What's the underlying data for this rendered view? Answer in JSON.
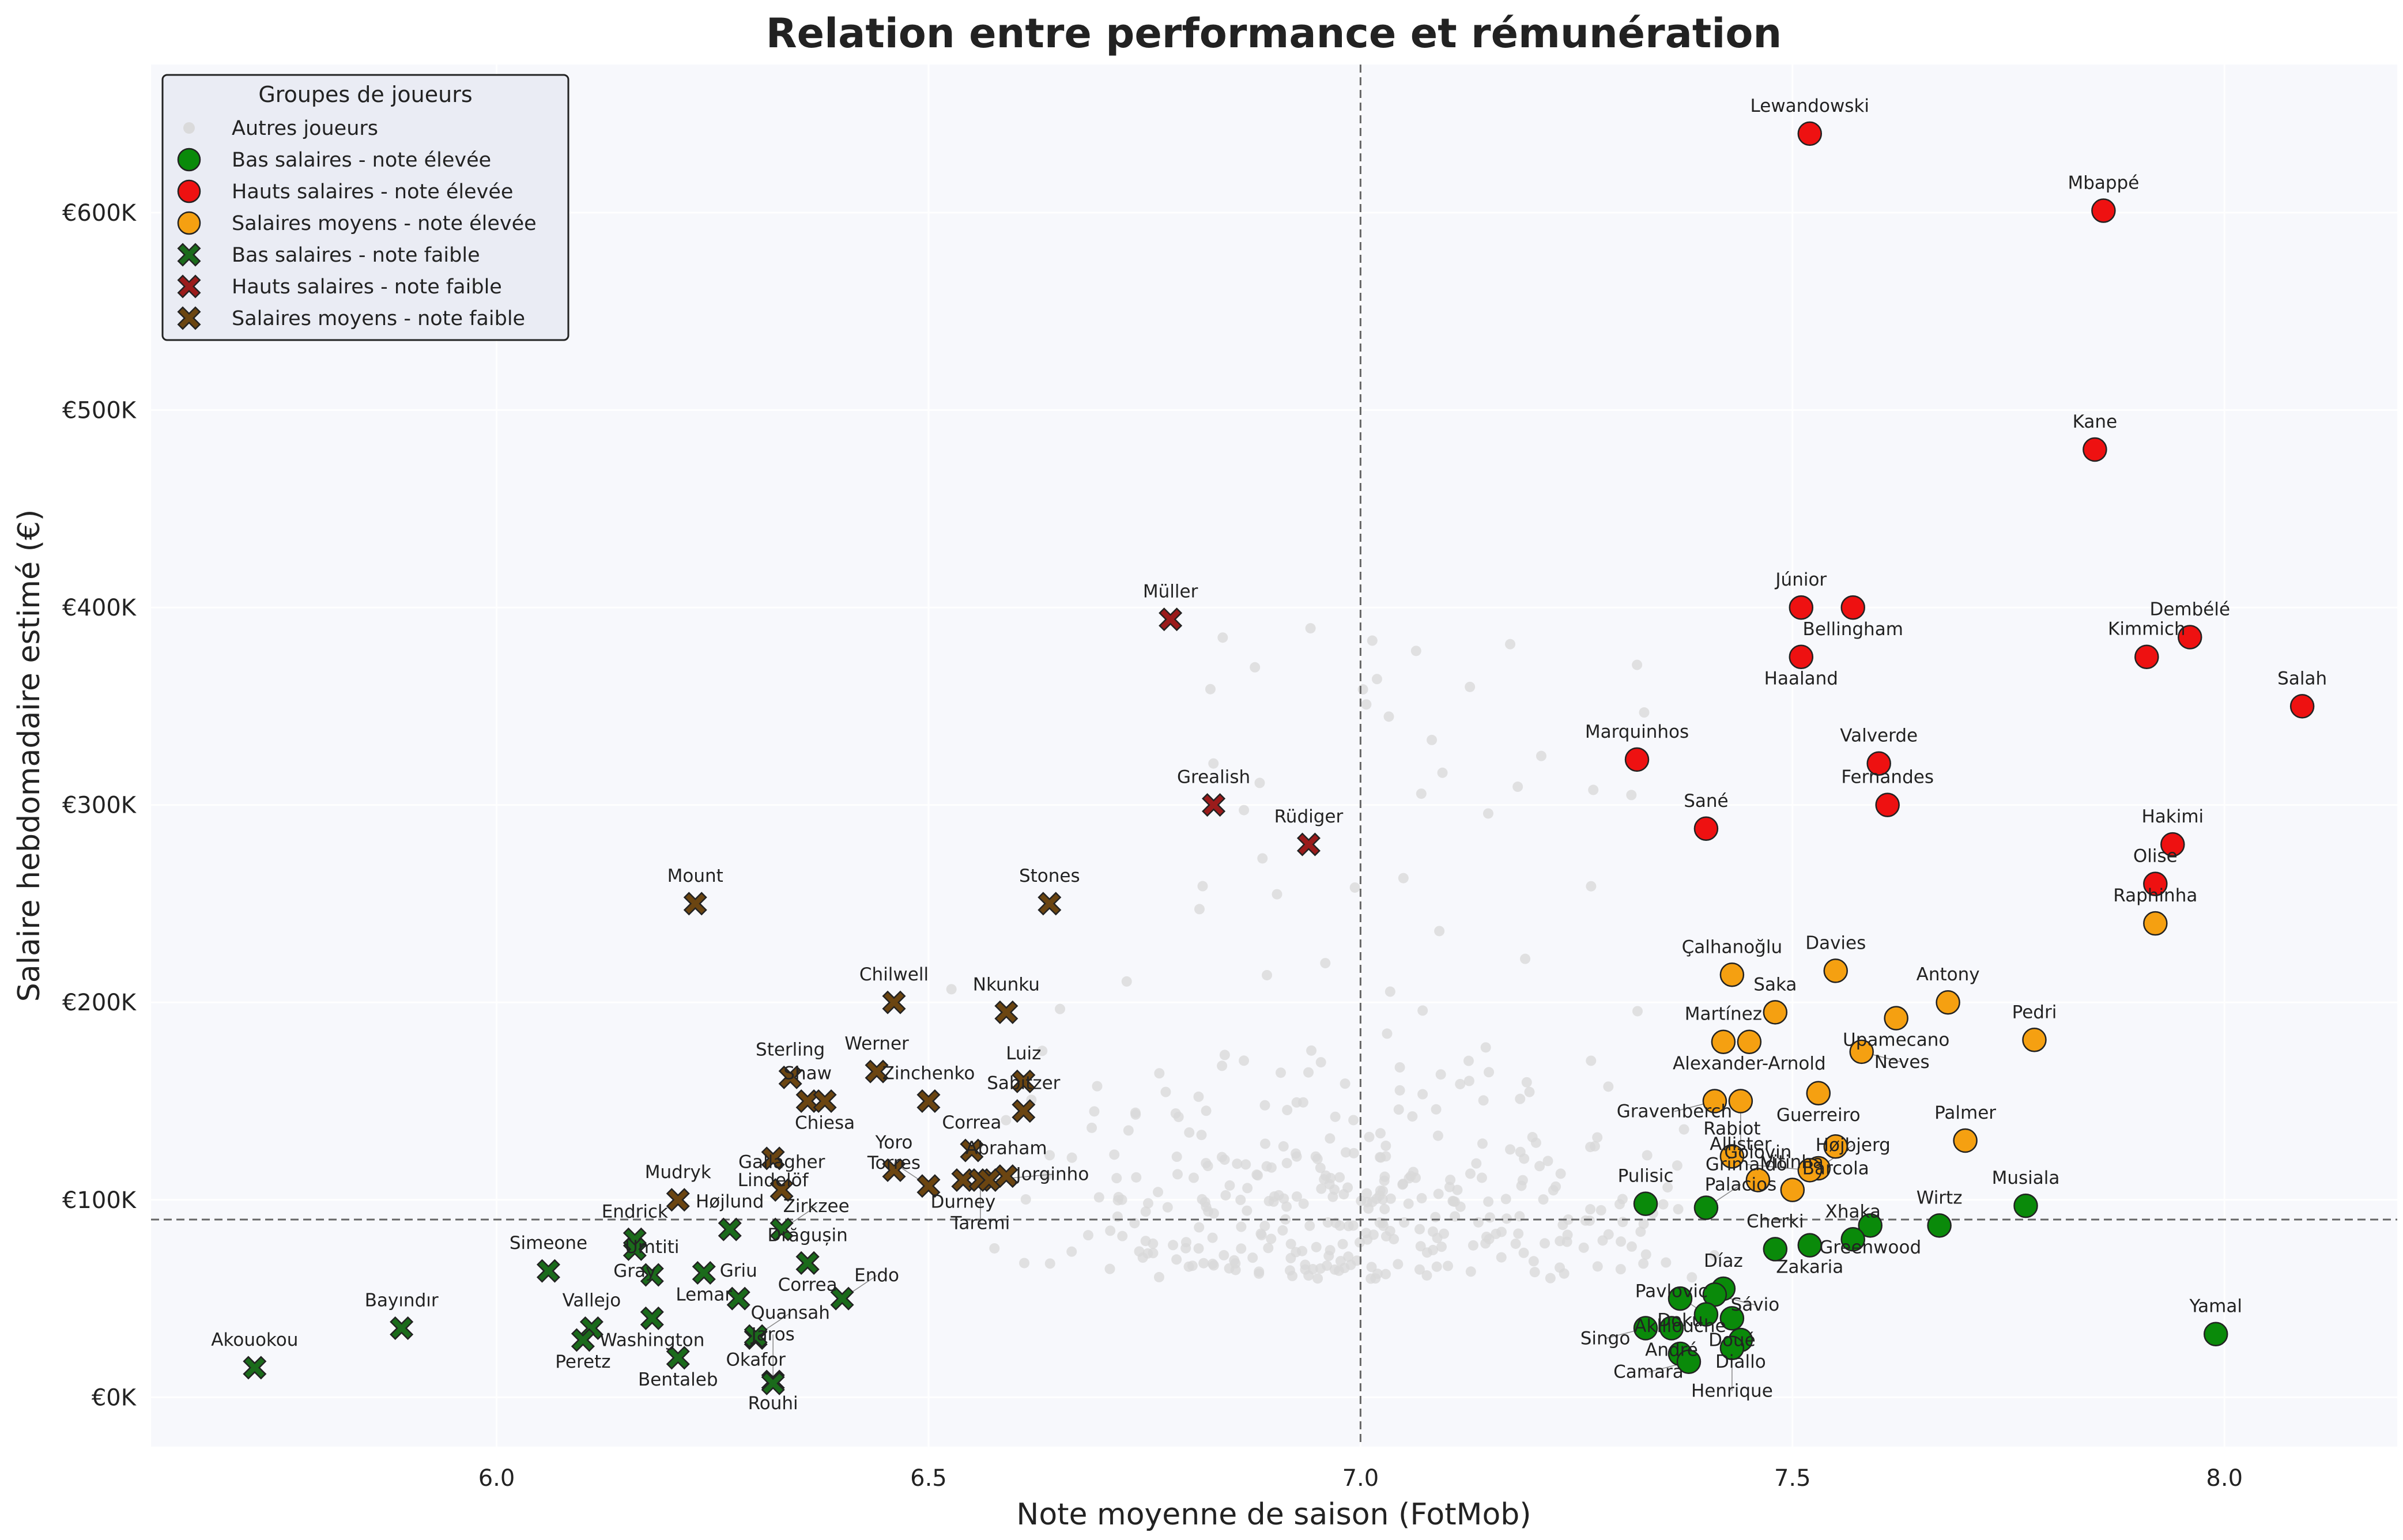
{
  "chart_data": {
    "type": "scatter",
    "title": "Relation entre performance et rémunération",
    "xlabel": "Note moyenne de saison (FotMob)",
    "ylabel": "Salaire hebdomadaire estimé (€)",
    "xlim": [
      5.6,
      8.2
    ],
    "ylim": [
      -25000,
      675000
    ],
    "x_ticks": [
      6.0,
      6.5,
      7.0,
      7.5,
      8.0
    ],
    "x_tick_labels": [
      "6.0",
      "6.5",
      "7.0",
      "7.5",
      "8.0"
    ],
    "y_ticks": [
      0,
      100000,
      200000,
      300000,
      400000,
      500000,
      600000
    ],
    "y_tick_labels": [
      "€0K",
      "€100K",
      "€200K",
      "€300K",
      "€400K",
      "€500K",
      "€600K"
    ],
    "reference_lines": {
      "x": 7.0,
      "y": 90000
    },
    "grid": true,
    "legend": {
      "title": "Groupes de joueurs",
      "placement": "top-left"
    },
    "colors": {
      "background": "#f7f8fc",
      "low_high": "#0a8a0a",
      "high_high": "#ee1111",
      "mid_high": "#f5a011",
      "low_low": "#1b6b1b",
      "high_low": "#9b1b1b",
      "mid_low": "#6b4511",
      "others": "#d8d8d8"
    },
    "series": [
      {
        "name": "Autres joueurs",
        "marker": "dot",
        "color": "#d8d8d8",
        "points": []
      },
      {
        "name": "Bas salaires - note élevée",
        "marker": "circle",
        "color": "#0a8a0a",
        "points": [
          {
            "label": "Musiala",
            "x": 7.77,
            "y": 97000
          },
          {
            "label": "Yamal",
            "x": 7.99,
            "y": 32000
          },
          {
            "label": "Wirtz",
            "x": 7.67,
            "y": 87000
          },
          {
            "label": "Greenwood",
            "x": 7.59,
            "y": 87000
          },
          {
            "label": "Xhaka",
            "x": 7.57,
            "y": 80000
          },
          {
            "label": "Zakaria",
            "x": 7.52,
            "y": 77000
          },
          {
            "label": "Cherki",
            "x": 7.48,
            "y": 75000
          },
          {
            "label": "Pulisic",
            "x": 7.33,
            "y": 98000
          },
          {
            "label": "Palacios",
            "x": 7.4,
            "y": 96000
          },
          {
            "label": "Díaz",
            "x": 7.42,
            "y": 55000
          },
          {
            "label": "Doku",
            "x": 7.37,
            "y": 50000
          },
          {
            "label": "Sávio",
            "x": 7.41,
            "y": 52000
          },
          {
            "label": "Pavlovic",
            "x": 7.4,
            "y": 42000
          },
          {
            "label": "Doué",
            "x": 7.43,
            "y": 40000
          },
          {
            "label": "André",
            "x": 7.36,
            "y": 35000
          },
          {
            "label": "Singo",
            "x": 7.33,
            "y": 35000
          },
          {
            "label": "Diallo",
            "x": 7.44,
            "y": 29000
          },
          {
            "label": "Henrique",
            "x": 7.43,
            "y": 25000
          },
          {
            "label": "Aklliouche",
            "x": 7.37,
            "y": 22000
          },
          {
            "label": "Camara",
            "x": 7.38,
            "y": 18000
          }
        ]
      },
      {
        "name": "Hauts salaires - note élevée",
        "marker": "circle",
        "color": "#ee1111",
        "points": [
          {
            "label": "Lewandowski",
            "x": 7.52,
            "y": 640000
          },
          {
            "label": "Mbappé",
            "x": 7.86,
            "y": 601000
          },
          {
            "label": "Kane",
            "x": 7.85,
            "y": 480000
          },
          {
            "label": "Júnior",
            "x": 7.51,
            "y": 400000
          },
          {
            "label": "Bellingham",
            "x": 7.57,
            "y": 400000
          },
          {
            "label": "Dembélé",
            "x": 7.96,
            "y": 385000
          },
          {
            "label": "Haaland",
            "x": 7.51,
            "y": 375000
          },
          {
            "label": "Kimmich",
            "x": 7.91,
            "y": 375000
          },
          {
            "label": "Salah",
            "x": 8.09,
            "y": 350000
          },
          {
            "label": "Marquinhos",
            "x": 7.32,
            "y": 323000
          },
          {
            "label": "Valverde",
            "x": 7.6,
            "y": 321000
          },
          {
            "label": "Fernandes",
            "x": 7.61,
            "y": 300000
          },
          {
            "label": "Sané",
            "x": 7.4,
            "y": 288000
          },
          {
            "label": "Hakimi",
            "x": 7.94,
            "y": 280000
          },
          {
            "label": "Olise",
            "x": 7.92,
            "y": 260000
          }
        ]
      },
      {
        "name": "Salaires moyens - note élevée",
        "marker": "circle",
        "color": "#f5a011",
        "points": [
          {
            "label": "Raphinha",
            "x": 7.92,
            "y": 240000
          },
          {
            "label": "Davies",
            "x": 7.55,
            "y": 216000
          },
          {
            "label": "Çalhanoğlu",
            "x": 7.43,
            "y": 214000
          },
          {
            "label": "Antony",
            "x": 7.68,
            "y": 200000
          },
          {
            "label": "Saka",
            "x": 7.48,
            "y": 195000
          },
          {
            "label": "Upamecano",
            "x": 7.62,
            "y": 192000
          },
          {
            "label": "Pedri",
            "x": 7.78,
            "y": 181000
          },
          {
            "label": "Martínez",
            "x": 7.42,
            "y": 180000
          },
          {
            "label": "Alexander-Arnold",
            "x": 7.45,
            "y": 180000
          },
          {
            "label": "Neves",
            "x": 7.58,
            "y": 175000
          },
          {
            "label": "Guerreiro",
            "x": 7.53,
            "y": 154000
          },
          {
            "label": "Gravenberch",
            "x": 7.41,
            "y": 150000
          },
          {
            "label": "Allister",
            "x": 7.44,
            "y": 150000
          },
          {
            "label": "Palmer",
            "x": 7.7,
            "y": 130000
          },
          {
            "label": "Barcola",
            "x": 7.55,
            "y": 127000
          },
          {
            "label": "Rabiot",
            "x": 7.43,
            "y": 122000
          },
          {
            "label": "Højbjerg",
            "x": 7.53,
            "y": 116000
          },
          {
            "label": "Grimaldo",
            "x": 7.52,
            "y": 115000
          },
          {
            "label": "Golovin",
            "x": 7.46,
            "y": 110000
          },
          {
            "label": "Vitinha",
            "x": 7.5,
            "y": 105000
          }
        ]
      },
      {
        "name": "Bas salaires - note faible",
        "marker": "x",
        "color": "#1b6b1b",
        "points": [
          {
            "label": "Akouokou",
            "x": 5.72,
            "y": 15000
          },
          {
            "label": "Bayındır",
            "x": 5.89,
            "y": 35000
          },
          {
            "label": "Simeone",
            "x": 6.06,
            "y": 64000
          },
          {
            "label": "Endrick",
            "x": 6.16,
            "y": 80000
          },
          {
            "label": "Gray",
            "x": 6.16,
            "y": 75000
          },
          {
            "label": "Umtiti",
            "x": 6.18,
            "y": 62000
          },
          {
            "label": "Vallejo",
            "x": 6.11,
            "y": 35000
          },
          {
            "label": "Peretz",
            "x": 6.1,
            "y": 29000
          },
          {
            "label": "Washington",
            "x": 6.18,
            "y": 40000
          },
          {
            "label": "Bentaleb",
            "x": 6.21,
            "y": 20000
          },
          {
            "label": "Højlund",
            "x": 6.27,
            "y": 85000
          },
          {
            "label": "Lemar",
            "x": 6.24,
            "y": 63000
          },
          {
            "label": "Griu",
            "x": 6.28,
            "y": 50000
          },
          {
            "label": "Okafor",
            "x": 6.3,
            "y": 30000
          },
          {
            "label": "Quansah",
            "x": 6.3,
            "y": 31000
          },
          {
            "label": "Zirkzee",
            "x": 6.33,
            "y": 85000
          },
          {
            "label": "Drăgușin",
            "x": 6.36,
            "y": 68000
          },
          {
            "label": "Correa",
            "x": 6.36,
            "y": 68000
          },
          {
            "label": "Endo",
            "x": 6.4,
            "y": 50000
          },
          {
            "label": "Rouhi",
            "x": 6.32,
            "y": 8000
          },
          {
            "label": "Jaros",
            "x": 6.32,
            "y": 7000
          }
        ]
      },
      {
        "name": "Hauts salaires - note faible",
        "marker": "x",
        "color": "#9b1b1b",
        "points": [
          {
            "label": "Müller",
            "x": 6.78,
            "y": 394000
          },
          {
            "label": "Grealish",
            "x": 6.83,
            "y": 300000
          },
          {
            "label": "Rüdiger",
            "x": 6.94,
            "y": 280000
          }
        ]
      },
      {
        "name": "Salaires moyens - note faible",
        "marker": "x",
        "color": "#6b4511",
        "points": [
          {
            "label": "Mount",
            "x": 6.23,
            "y": 250000
          },
          {
            "label": "Stones",
            "x": 6.64,
            "y": 250000
          },
          {
            "label": "Chilwell",
            "x": 6.46,
            "y": 200000
          },
          {
            "label": "Nkunku",
            "x": 6.59,
            "y": 195000
          },
          {
            "label": "Werner",
            "x": 6.44,
            "y": 165000
          },
          {
            "label": "Sterling",
            "x": 6.34,
            "y": 162000
          },
          {
            "label": "Luiz",
            "x": 6.61,
            "y": 160000
          },
          {
            "label": "Shaw",
            "x": 6.36,
            "y": 150000
          },
          {
            "label": "Chiesa",
            "x": 6.38,
            "y": 150000
          },
          {
            "label": "Zinchenko",
            "x": 6.5,
            "y": 150000
          },
          {
            "label": "Sabitzer",
            "x": 6.61,
            "y": 145000
          },
          {
            "label": "Correa",
            "x": 6.55,
            "y": 125000
          },
          {
            "label": "Lindelöf",
            "x": 6.32,
            "y": 121000
          },
          {
            "label": "Yoro",
            "x": 6.46,
            "y": 115000
          },
          {
            "label": "Abraham",
            "x": 6.59,
            "y": 112000
          },
          {
            "label": "Durney",
            "x": 6.54,
            "y": 110000
          },
          {
            "label": "Taremi",
            "x": 6.56,
            "y": 110000
          },
          {
            "label": "Jorginho",
            "x": 6.57,
            "y": 110000
          },
          {
            "label": "Torres",
            "x": 6.5,
            "y": 107000
          },
          {
            "label": "Mudryk",
            "x": 6.21,
            "y": 100000
          },
          {
            "label": "Gallagher",
            "x": 6.33,
            "y": 105000
          }
        ]
      }
    ]
  }
}
